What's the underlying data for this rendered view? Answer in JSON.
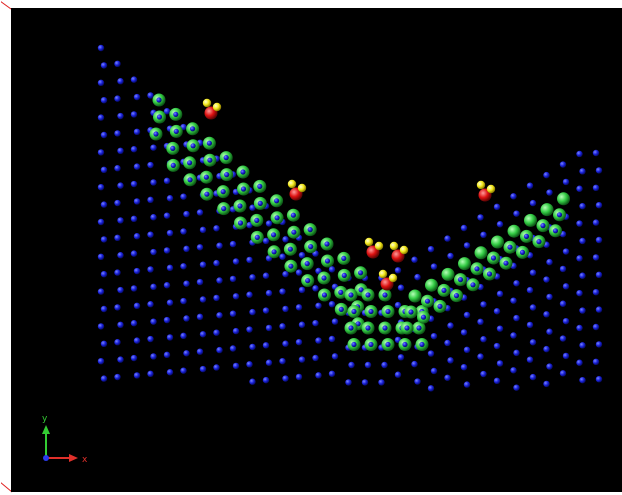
{
  "viewer": {
    "background": "#000000",
    "frame_color": "#e02020"
  },
  "axes": {
    "x_label": "x",
    "y_label": "y",
    "x_color": "#e0302a",
    "y_color": "#33cc33",
    "z_color": "#2a3aee"
  },
  "atom_colors": {
    "substrate": "#1a22dd",
    "adsorbate_shell": "#39d64a",
    "oxygen": "#dd1111",
    "hydrogen": "#f2e81a"
  },
  "icons": [
    "coordinate-axes-icon"
  ]
}
